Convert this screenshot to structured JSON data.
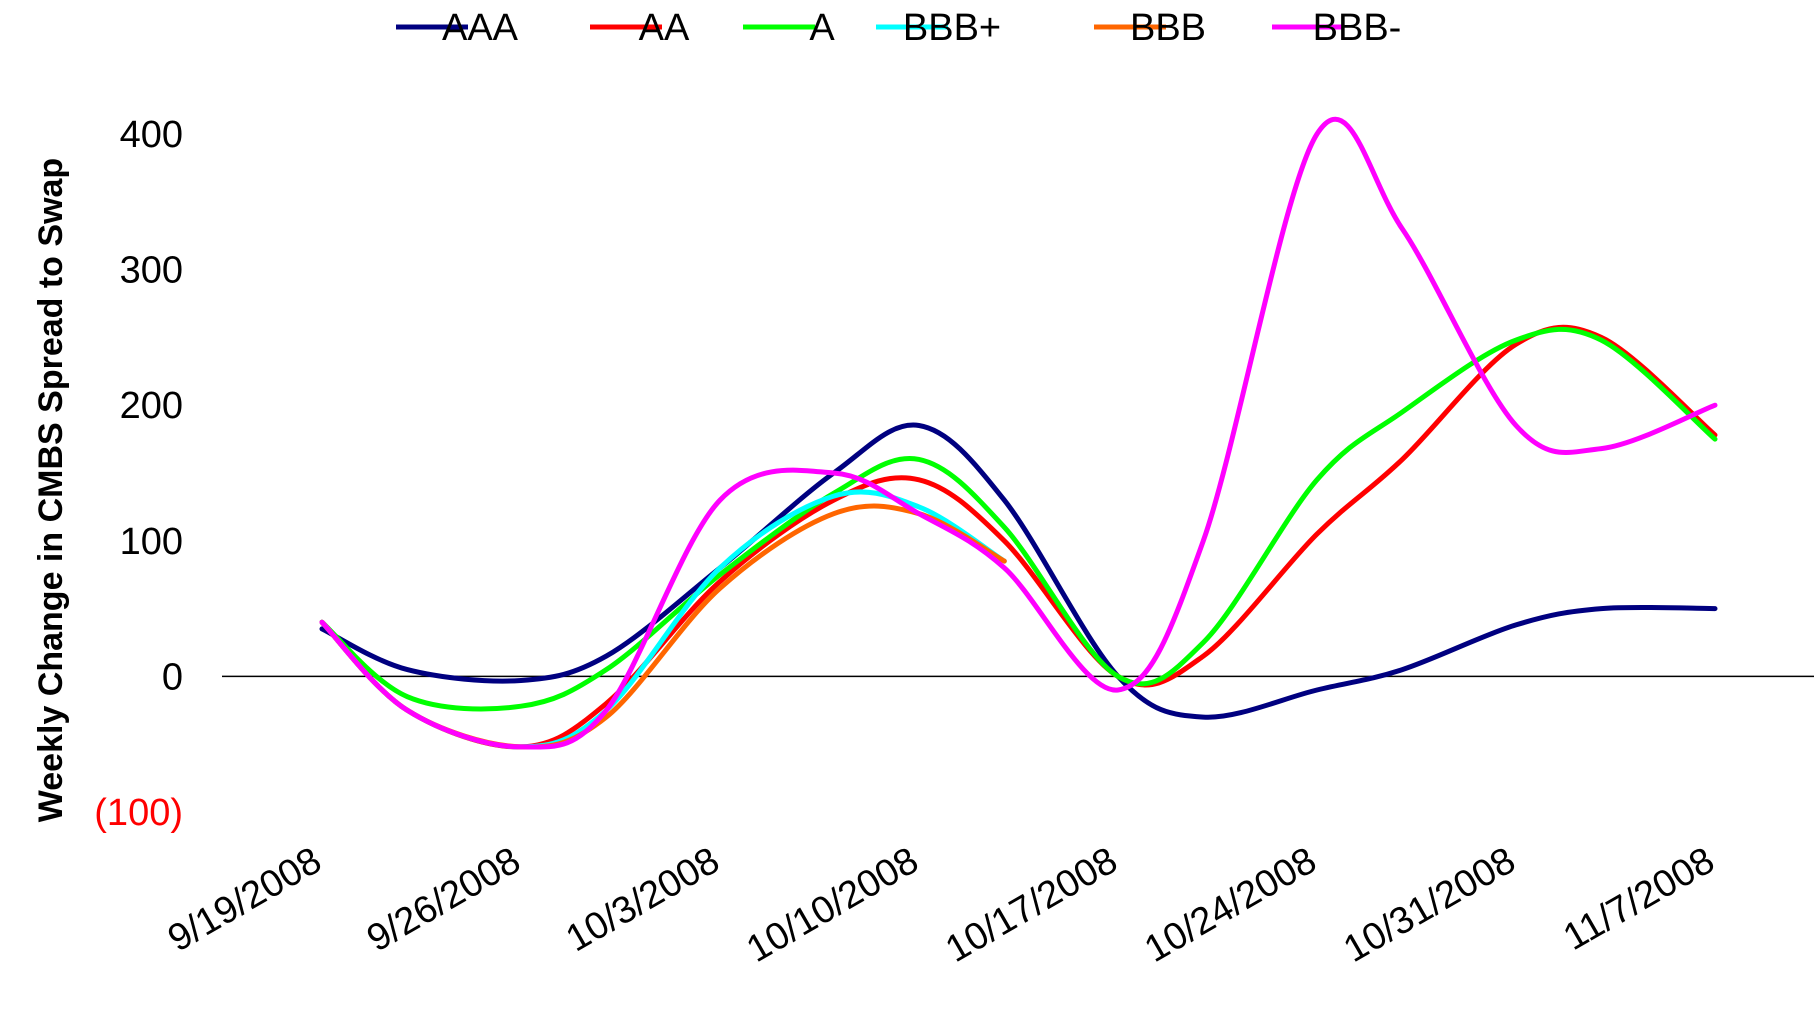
{
  "chart_data": {
    "type": "line",
    "title": "",
    "xlabel": "",
    "ylabel": "Weekly Change in CMBS Spread to Swap",
    "ylim": [
      -100,
      400
    ],
    "y_ticks": [
      {
        "value": 400,
        "label": "400",
        "color": "#000000"
      },
      {
        "value": 300,
        "label": "300",
        "color": "#000000"
      },
      {
        "value": 200,
        "label": "200",
        "color": "#000000"
      },
      {
        "value": 100,
        "label": "100",
        "color": "#000000"
      },
      {
        "value": 0,
        "label": "0",
        "color": "#000000"
      },
      {
        "value": -100,
        "label": "(100)",
        "color": "#ff0000"
      }
    ],
    "x_tick_labels": [
      "9/19/2008",
      "9/26/2008",
      "10/3/2008",
      "10/10/2008",
      "10/17/2008",
      "10/24/2008",
      "10/31/2008",
      "11/7/2008"
    ],
    "x_range": [
      "9/19/2008",
      "11/7/2008"
    ],
    "grid": false,
    "legend_position": "top",
    "series": [
      {
        "name": "AAA",
        "color": "#000080",
        "x": [
          "9/19/2008",
          "9/22/2008",
          "9/26/2008",
          "9/29/2008",
          "10/3/2008",
          "10/7/2008",
          "10/10/2008",
          "10/13/2008",
          "10/17/2008",
          "10/20/2008",
          "10/24/2008",
          "10/27/2008",
          "10/31/2008",
          "11/3/2008",
          "11/7/2008"
        ],
        "values": [
          35,
          5,
          -3,
          15,
          80,
          150,
          185,
          130,
          0,
          -30,
          -10,
          5,
          38,
          50,
          50
        ]
      },
      {
        "name": "AA",
        "color": "#ff0000",
        "x": [
          "9/19/2008",
          "9/22/2008",
          "9/26/2008",
          "9/29/2008",
          "10/3/2008",
          "10/7/2008",
          "10/10/2008",
          "10/13/2008",
          "10/17/2008",
          "10/20/2008",
          "10/24/2008",
          "10/27/2008",
          "10/31/2008",
          "11/3/2008",
          "11/7/2008"
        ],
        "values": [
          40,
          -25,
          -52,
          -20,
          70,
          130,
          145,
          100,
          0,
          15,
          105,
          160,
          245,
          250,
          178
        ]
      },
      {
        "name": "A",
        "color": "#00ff00",
        "x": [
          "9/19/2008",
          "9/22/2008",
          "9/26/2008",
          "9/29/2008",
          "10/3/2008",
          "10/7/2008",
          "10/10/2008",
          "10/13/2008",
          "10/17/2008",
          "10/20/2008",
          "10/24/2008",
          "10/27/2008",
          "10/31/2008",
          "11/3/2008",
          "11/7/2008"
        ],
        "values": [
          40,
          -15,
          -22,
          5,
          75,
          135,
          160,
          110,
          0,
          25,
          145,
          195,
          248,
          248,
          175
        ]
      },
      {
        "name": "BBB+",
        "color": "#00ffff",
        "x": [
          "9/19/2008",
          "9/22/2008",
          "9/26/2008",
          "9/29/2008",
          "10/3/2008",
          "10/7/2008",
          "10/10/2008",
          "10/13/2008"
        ],
        "values": [
          40,
          -25,
          -52,
          -25,
          80,
          133,
          125,
          85
        ]
      },
      {
        "name": "BBB",
        "color": "#ff6600",
        "x": [
          "9/19/2008",
          "9/22/2008",
          "9/26/2008",
          "9/29/2008",
          "10/3/2008",
          "10/7/2008",
          "10/10/2008",
          "10/13/2008"
        ],
        "values": [
          40,
          -25,
          -52,
          -30,
          65,
          120,
          120,
          85
        ]
      },
      {
        "name": "BBB-",
        "color": "#ff00ff",
        "x": [
          "9/19/2008",
          "9/22/2008",
          "9/26/2008",
          "9/29/2008",
          "10/3/2008",
          "10/7/2008",
          "10/10/2008",
          "10/13/2008",
          "10/17/2008",
          "10/20/2008",
          "10/24/2008",
          "10/27/2008",
          "10/31/2008",
          "11/3/2008",
          "11/7/2008"
        ],
        "values": [
          40,
          -25,
          -52,
          -25,
          130,
          150,
          120,
          80,
          -10,
          100,
          400,
          330,
          185,
          168,
          200
        ]
      }
    ]
  }
}
